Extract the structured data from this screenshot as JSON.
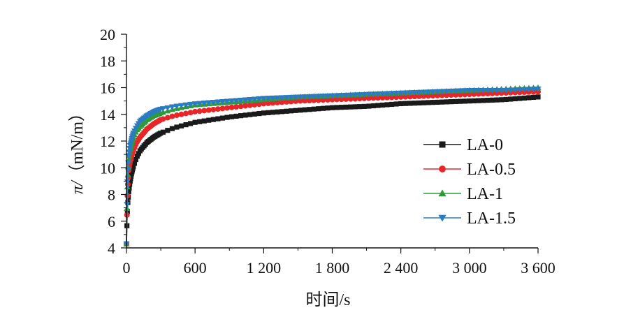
{
  "chart_data": {
    "type": "scatter",
    "title": "",
    "xlabel": "时间/s",
    "ylabel_symbol": "π/",
    "ylabel_unit": "（mN/m）",
    "xlim": [
      0,
      3600
    ],
    "ylim": [
      4,
      20
    ],
    "xticks": [
      0,
      600,
      1200,
      1800,
      2400,
      3000,
      3600
    ],
    "xtick_labels": [
      "0",
      "600",
      "1 200",
      "1 800",
      "2 400",
      "3 000",
      "3 600"
    ],
    "yticks": [
      4,
      6,
      8,
      10,
      12,
      14,
      16,
      18,
      20
    ],
    "ytick_labels": [
      "4",
      "6",
      "8",
      "10",
      "12",
      "14",
      "16",
      "18",
      "20"
    ],
    "grid": false,
    "legend_position": "right",
    "x": [
      0,
      5,
      10,
      20,
      30,
      45,
      60,
      90,
      120,
      180,
      240,
      300,
      420,
      600,
      900,
      1200,
      1500,
      1800,
      2100,
      2400,
      2700,
      3000,
      3300,
      3600
    ],
    "series": [
      {
        "name": "LA-0",
        "marker": "square",
        "color": "#1a1a1a",
        "values": [
          4.3,
          6.0,
          7.2,
          8.2,
          8.9,
          9.6,
          10.1,
          10.8,
          11.3,
          11.9,
          12.3,
          12.6,
          13.0,
          13.4,
          13.8,
          14.1,
          14.3,
          14.5,
          14.6,
          14.8,
          14.9,
          15.0,
          15.1,
          15.3
        ]
      },
      {
        "name": "LA-0.5",
        "marker": "circle",
        "color": "#e8262a",
        "values": [
          4.3,
          7.0,
          8.5,
          9.8,
          10.4,
          10.9,
          11.3,
          11.9,
          12.3,
          12.9,
          13.3,
          13.6,
          13.9,
          14.2,
          14.5,
          14.8,
          15.0,
          15.1,
          15.2,
          15.3,
          15.4,
          15.5,
          15.6,
          15.7
        ]
      },
      {
        "name": "LA-1",
        "marker": "triangle-up",
        "color": "#2e9a3b",
        "values": [
          4.3,
          7.6,
          9.2,
          10.6,
          11.3,
          11.8,
          12.3,
          12.8,
          13.1,
          13.6,
          13.9,
          14.1,
          14.4,
          14.7,
          14.9,
          15.1,
          15.3,
          15.4,
          15.5,
          15.6,
          15.7,
          15.8,
          15.9,
          16.0
        ]
      },
      {
        "name": "LA-1.5",
        "marker": "triangle-down",
        "color": "#2b7bc0",
        "values": [
          4.3,
          8.0,
          9.6,
          10.9,
          11.6,
          12.1,
          12.6,
          13.1,
          13.5,
          13.9,
          14.2,
          14.4,
          14.6,
          14.8,
          15.0,
          15.2,
          15.3,
          15.4,
          15.5,
          15.6,
          15.7,
          15.8,
          15.8,
          15.9
        ]
      }
    ]
  }
}
